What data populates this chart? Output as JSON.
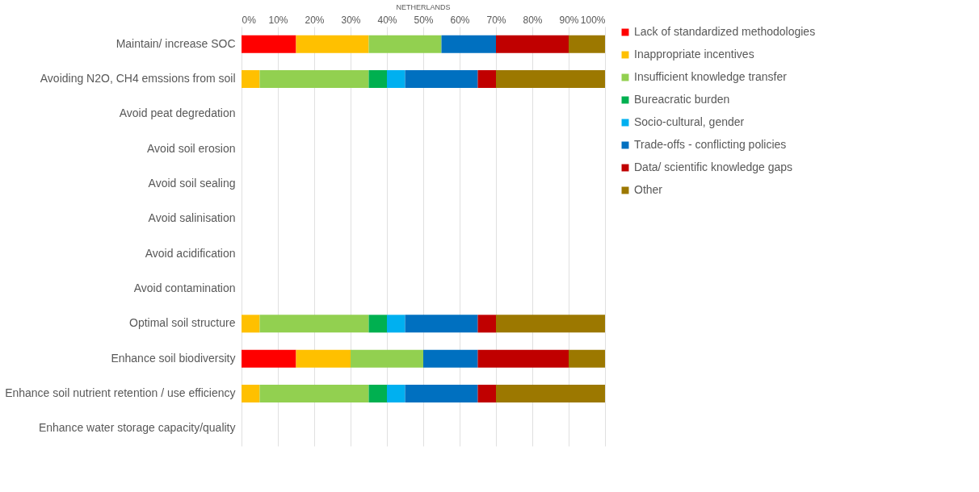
{
  "chart_data": {
    "type": "bar",
    "orientation": "horizontal",
    "stacked": true,
    "title": "NETHERLANDS",
    "categories": [
      "Maintain/ increase SOC",
      "Avoiding N2O, CH4 emssions from soil",
      "Avoid peat degredation",
      "Avoid soil erosion",
      "Avoid soil sealing",
      "Avoid salinisation",
      "Avoid acidification",
      "Avoid contamination",
      "Optimal soil structure",
      "Enhance soil biodiversity",
      "Enhance soil nutrient retention / use efficiency",
      "Enhance water storage capacity/quality"
    ],
    "series": [
      {
        "name": "Lack of standardized methodologies",
        "color": "#ff0000",
        "values": [
          15,
          null,
          null,
          null,
          null,
          null,
          null,
          null,
          null,
          15,
          null,
          null
        ]
      },
      {
        "name": "Inappropriate incentives",
        "color": "#ffc000",
        "values": [
          20,
          5,
          null,
          null,
          null,
          null,
          null,
          null,
          5,
          15,
          5,
          null
        ]
      },
      {
        "name": "Insufficient knowledge transfer",
        "color": "#92d050",
        "values": [
          20,
          30,
          null,
          null,
          null,
          null,
          null,
          null,
          30,
          20,
          30,
          null
        ]
      },
      {
        "name": "Bureacratic burden",
        "color": "#00b050",
        "values": [
          null,
          5,
          null,
          null,
          null,
          null,
          null,
          null,
          5,
          null,
          5,
          null
        ]
      },
      {
        "name": "Socio-cultural, gender",
        "color": "#00b0f0",
        "values": [
          null,
          5,
          null,
          null,
          null,
          null,
          null,
          null,
          5,
          null,
          5,
          null
        ]
      },
      {
        "name": "Trade-offs - conflicting policies",
        "color": "#0070c0",
        "values": [
          15,
          20,
          null,
          null,
          null,
          null,
          null,
          null,
          20,
          15,
          20,
          null
        ]
      },
      {
        "name": "Data/ scientific knowledge gaps",
        "color": "#c00000",
        "values": [
          20,
          5,
          null,
          null,
          null,
          null,
          null,
          null,
          5,
          25,
          5,
          null
        ]
      },
      {
        "name": "Other",
        "color": "#9c7800",
        "values": [
          10,
          30,
          null,
          null,
          null,
          null,
          null,
          null,
          30,
          10,
          30,
          null
        ]
      }
    ],
    "xlim": [
      0,
      100
    ],
    "xticks": [
      {
        "value": 0,
        "label": "0%"
      },
      {
        "value": 10,
        "label": "10%"
      },
      {
        "value": 20,
        "label": "20%"
      },
      {
        "value": 30,
        "label": "30%"
      },
      {
        "value": 40,
        "label": "40%"
      },
      {
        "value": 50,
        "label": "50%"
      },
      {
        "value": 60,
        "label": "60%"
      },
      {
        "value": 70,
        "label": "70%"
      },
      {
        "value": 80,
        "label": "80%"
      },
      {
        "value": 90,
        "label": "90%"
      },
      {
        "value": 100,
        "label": "100%"
      }
    ],
    "grid": "x",
    "legend": "right"
  }
}
